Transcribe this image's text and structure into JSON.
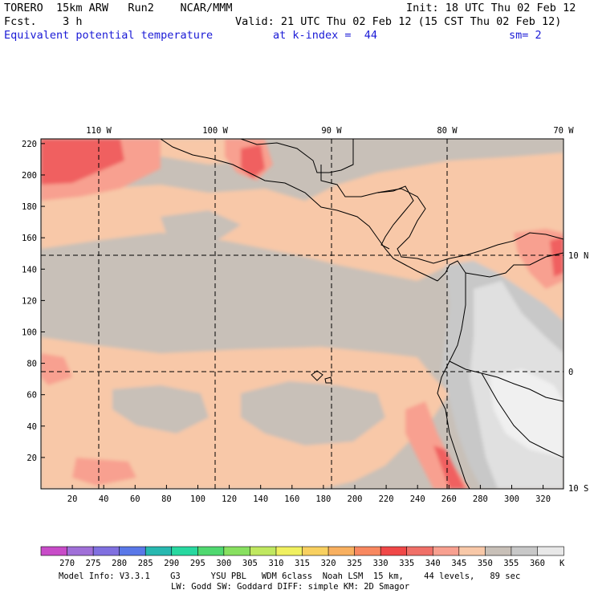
{
  "header": {
    "model": "TORERO  15km ARW   Run2    NCAR/MMM",
    "init": "Init: 18 UTC Thu 02 Feb 12",
    "fcst": "Fcst.    3 h",
    "valid": "Valid: 21 UTC Thu 02 Feb 12 (15 CST Thu 02 Feb 12)",
    "field": "Equivalent potential temperature",
    "level": "at k-index =  44",
    "smooth": "sm= 2"
  },
  "map": {
    "lon_labels": [
      "110 W",
      "100 W",
      "90 W",
      "80 W",
      "70 W"
    ],
    "lat_labels": [
      "10 N",
      "0",
      "10 S"
    ],
    "x_ticks": [
      "20",
      "40",
      "60",
      "80",
      "100",
      "120",
      "140",
      "160",
      "180",
      "200",
      "220",
      "240",
      "260",
      "280",
      "300",
      "320"
    ],
    "y_ticks": [
      "20",
      "40",
      "60",
      "80",
      "100",
      "120",
      "140",
      "160",
      "180",
      "200",
      "220"
    ],
    "background_color": "#c8c0b8"
  },
  "colorbar": {
    "labels": [
      "270",
      "275",
      "280",
      "285",
      "290",
      "295",
      "300",
      "305",
      "310",
      "315",
      "320",
      "325",
      "330",
      "335",
      "340",
      "345",
      "350",
      "355",
      "360"
    ],
    "unit": "K",
    "colors": [
      "#c84cc8",
      "#a070d8",
      "#8070e0",
      "#5a78e8",
      "#28b8b0",
      "#28d8a0",
      "#50d870",
      "#88e060",
      "#c0e860",
      "#f0f060",
      "#f8d060",
      "#f8b060",
      "#f88860",
      "#f04848",
      "#f07068",
      "#f8a090",
      "#f8c8a8",
      "#c8c0b8",
      "#c8c8c8",
      "#e8e8e8"
    ]
  },
  "footer": {
    "line1": "Model Info: V3.3.1    G3      YSU PBL   WDM 6class  Noah LSM  15 km,    44 levels,   89 sec",
    "line2": "LW: Godd SW: Goddard DIFF: simple KM: 2D Smagor"
  }
}
